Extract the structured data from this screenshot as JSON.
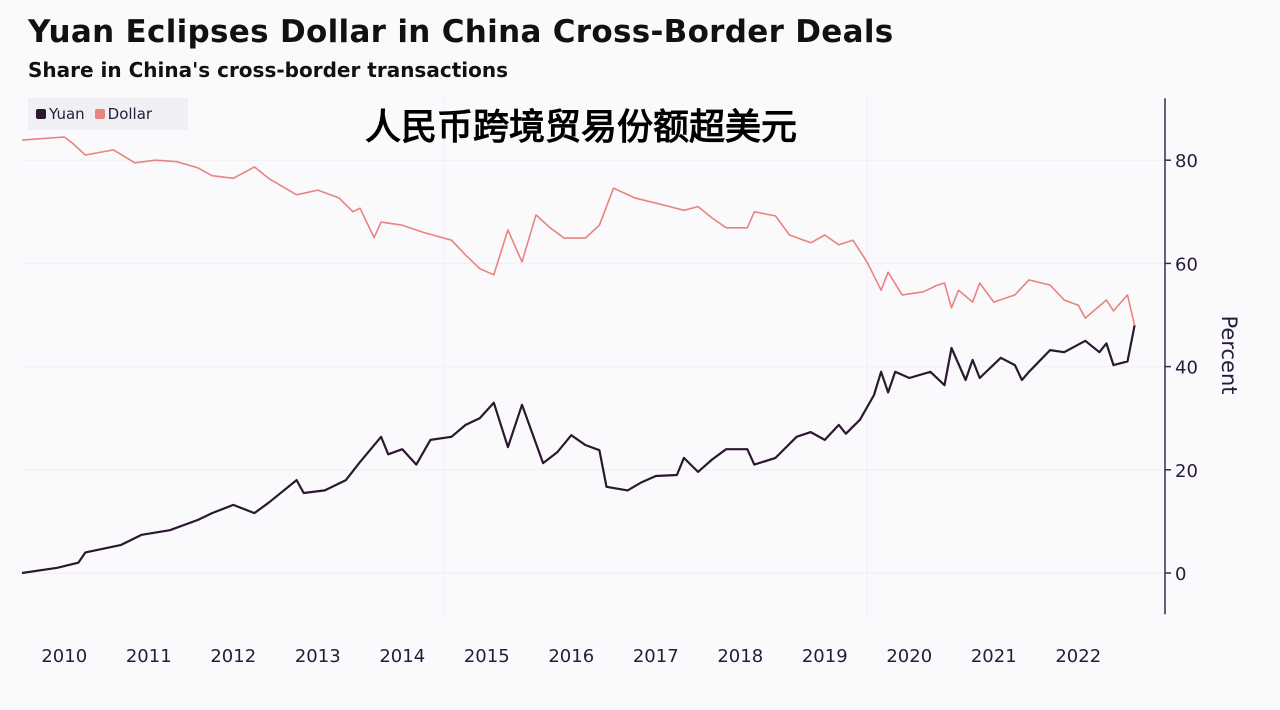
{
  "title": "Yuan Eclipses Dollar in China Cross-Border Deals",
  "subtitle": "Share in China's cross-border transactions",
  "overlay_text": "人民币跨境贸易份额超美元",
  "chart_data": {
    "type": "line",
    "title": "Yuan Eclipses Dollar in China Cross-Border Deals",
    "subtitle": "Share in China's cross-border transactions",
    "ylabel": "Percent",
    "ylim": [
      -8,
      92
    ],
    "yticks": [
      0,
      20,
      40,
      60,
      80
    ],
    "xticks": [
      "2010",
      "2011",
      "2012",
      "2013",
      "2014",
      "2015",
      "2016",
      "2017",
      "2018",
      "2019",
      "2020",
      "2021",
      "2022"
    ],
    "y_axis_side": "right",
    "legend_position": "top-left",
    "grid": true,
    "series": [
      {
        "name": "Yuan",
        "color": "#2b1830",
        "points": [
          [
            "2010-01",
            0
          ],
          [
            "2010-06",
            1
          ],
          [
            "2010-09",
            2
          ],
          [
            "2010-10",
            4
          ],
          [
            "2011-03",
            5.4
          ],
          [
            "2011-06",
            7.4
          ],
          [
            "2011-10",
            8.3
          ],
          [
            "2012-02",
            10.3
          ],
          [
            "2012-04",
            11.6
          ],
          [
            "2012-07",
            13.2
          ],
          [
            "2012-10",
            11.6
          ],
          [
            "2012-12",
            13.6
          ],
          [
            "2013-04",
            18
          ],
          [
            "2013-05",
            15.5
          ],
          [
            "2013-08",
            16
          ],
          [
            "2013-11",
            18
          ],
          [
            "2014-01",
            21.5
          ],
          [
            "2014-04",
            26.4
          ],
          [
            "2014-05",
            23
          ],
          [
            "2014-07",
            24
          ],
          [
            "2014-09",
            21
          ],
          [
            "2014-11",
            25.8
          ],
          [
            "2015-02",
            26.4
          ],
          [
            "2015-04",
            28.7
          ],
          [
            "2015-06",
            30
          ],
          [
            "2015-08",
            33
          ],
          [
            "2015-10",
            24.4
          ],
          [
            "2015-12",
            32.6
          ],
          [
            "2016-03",
            21.3
          ],
          [
            "2016-05",
            23.4
          ],
          [
            "2016-07",
            26.7
          ],
          [
            "2016-09",
            24.8
          ],
          [
            "2016-11",
            23.8
          ],
          [
            "2016-12",
            16.7
          ],
          [
            "2017-03",
            16
          ],
          [
            "2017-05",
            17.6
          ],
          [
            "2017-07",
            18.8
          ],
          [
            "2017-10",
            19
          ],
          [
            "2017-11",
            22.3
          ],
          [
            "2018-01",
            19.6
          ],
          [
            "2018-03",
            22
          ],
          [
            "2018-05",
            24
          ],
          [
            "2018-08",
            24
          ],
          [
            "2018-09",
            21
          ],
          [
            "2018-12",
            22.3
          ],
          [
            "2019-03",
            26.4
          ],
          [
            "2019-05",
            27.3
          ],
          [
            "2019-07",
            25.8
          ],
          [
            "2019-09",
            28.7
          ],
          [
            "2019-10",
            27
          ],
          [
            "2019-12",
            29.7
          ],
          [
            "2020-02",
            34.5
          ],
          [
            "2020-03",
            39
          ],
          [
            "2020-04",
            35
          ],
          [
            "2020-05",
            39
          ],
          [
            "2020-07",
            37.8
          ],
          [
            "2020-10",
            39
          ],
          [
            "2020-12",
            36.4
          ],
          [
            "2021-01",
            43.6
          ],
          [
            "2021-03",
            37.4
          ],
          [
            "2021-04",
            41.3
          ],
          [
            "2021-05",
            37.8
          ],
          [
            "2021-08",
            41.7
          ],
          [
            "2021-10",
            40.3
          ],
          [
            "2021-11",
            37.4
          ],
          [
            "2021-12",
            39
          ],
          [
            "2022-03",
            43.2
          ],
          [
            "2022-05",
            42.8
          ],
          [
            "2022-08",
            45
          ],
          [
            "2022-10",
            42.8
          ],
          [
            "2022-11",
            44.5
          ],
          [
            "2022-12",
            40.3
          ],
          [
            "2023-02",
            41
          ],
          [
            "2023-03",
            48
          ]
        ]
      },
      {
        "name": "Dollar",
        "color": "#e8837f",
        "points": [
          [
            "2010-01",
            83.9
          ],
          [
            "2010-07",
            84.5
          ],
          [
            "2010-08",
            83.5
          ],
          [
            "2010-10",
            81
          ],
          [
            "2011-02",
            82
          ],
          [
            "2011-05",
            79.5
          ],
          [
            "2011-08",
            80
          ],
          [
            "2011-11",
            79.7
          ],
          [
            "2012-02",
            78.5
          ],
          [
            "2012-04",
            77
          ],
          [
            "2012-07",
            76.5
          ],
          [
            "2012-10",
            78.7
          ],
          [
            "2012-12",
            76.5
          ],
          [
            "2013-04",
            73.3
          ],
          [
            "2013-07",
            74.2
          ],
          [
            "2013-10",
            72.7
          ],
          [
            "2013-12",
            70
          ],
          [
            "2014-01",
            70.7
          ],
          [
            "2014-03",
            65
          ],
          [
            "2014-04",
            68
          ],
          [
            "2014-07",
            67.4
          ],
          [
            "2014-10",
            66
          ],
          [
            "2015-02",
            64.5
          ],
          [
            "2015-04",
            61.6
          ],
          [
            "2015-06",
            59
          ],
          [
            "2015-08",
            57.8
          ],
          [
            "2015-10",
            66.5
          ],
          [
            "2015-12",
            60.3
          ],
          [
            "2016-02",
            69.4
          ],
          [
            "2016-04",
            66.9
          ],
          [
            "2016-06",
            64.9
          ],
          [
            "2016-09",
            64.9
          ],
          [
            "2016-11",
            67.4
          ],
          [
            "2017-01",
            74.6
          ],
          [
            "2017-04",
            72.7
          ],
          [
            "2017-09",
            71
          ],
          [
            "2017-11",
            70.3
          ],
          [
            "2018-01",
            71
          ],
          [
            "2018-03",
            68.8
          ],
          [
            "2018-05",
            66.9
          ],
          [
            "2018-08",
            66.9
          ],
          [
            "2018-09",
            70
          ],
          [
            "2018-12",
            69.2
          ],
          [
            "2019-02",
            65.5
          ],
          [
            "2019-05",
            64
          ],
          [
            "2019-07",
            65.5
          ],
          [
            "2019-09",
            63.6
          ],
          [
            "2019-11",
            64.5
          ],
          [
            "2020-01",
            60.3
          ],
          [
            "2020-03",
            54.8
          ],
          [
            "2020-04",
            58.3
          ],
          [
            "2020-06",
            53.9
          ],
          [
            "2020-09",
            54.5
          ],
          [
            "2020-11",
            55.8
          ],
          [
            "2020-12",
            56.2
          ],
          [
            "2021-01",
            51.4
          ],
          [
            "2021-02",
            54.8
          ],
          [
            "2021-04",
            52.5
          ],
          [
            "2021-05",
            56.2
          ],
          [
            "2021-07",
            52.5
          ],
          [
            "2021-10",
            53.9
          ],
          [
            "2021-12",
            56.8
          ],
          [
            "2022-03",
            55.8
          ],
          [
            "2022-05",
            52.9
          ],
          [
            "2022-07",
            51.9
          ],
          [
            "2022-08",
            49.4
          ],
          [
            "2022-11",
            52.9
          ],
          [
            "2022-12",
            50.8
          ],
          [
            "2023-02",
            53.9
          ],
          [
            "2023-03",
            48
          ]
        ]
      }
    ]
  }
}
